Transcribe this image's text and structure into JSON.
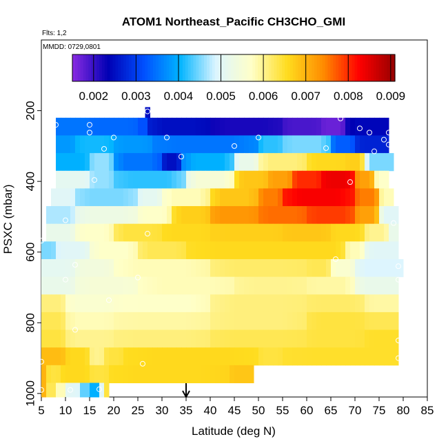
{
  "chart_data": {
    "type": "heatmap",
    "title": "ATOM1 Northeast_Pacific CH3CHO_GMI",
    "flights_label": "Flts: 1,2",
    "mmdd_label": "MMDD: 0729,0801",
    "xlabel": "Latitude (deg N)",
    "ylabel": "PSXC (mbar)",
    "xlim": [
      5,
      85
    ],
    "ylim": [
      1010,
      0
    ],
    "x_ticks": [
      5,
      10,
      15,
      20,
      25,
      30,
      35,
      40,
      45,
      50,
      55,
      60,
      65,
      70,
      75,
      80,
      85
    ],
    "y_ticks": [
      200,
      400,
      600,
      800,
      1000
    ],
    "colorbar": {
      "min": 0.0015,
      "max": 0.0091,
      "ticks": [
        0.002,
        0.003,
        0.004,
        0.005,
        0.006,
        0.007,
        0.008,
        0.009
      ],
      "colors": [
        "#8a2be2",
        "#0000b4",
        "#0050ff",
        "#00b4ff",
        "#dcf5ff",
        "#ffffc8",
        "#ffdc1e",
        "#ff8c00",
        "#ff0000",
        "#960000"
      ]
    },
    "marker_latitude": 35,
    "rows": [
      {
        "p_top": 190,
        "p_bot": 220,
        "segments": [
          [
            26.5,
            27.5,
            0.0025
          ]
        ]
      },
      {
        "p_top": 220,
        "p_bot": 270,
        "segments": [
          [
            8,
            15,
            0.0035
          ],
          [
            15,
            25,
            0.0034
          ],
          [
            25,
            27,
            0.0032
          ],
          [
            27,
            40,
            0.0025
          ],
          [
            40,
            55,
            0.0022
          ],
          [
            55,
            63,
            0.0019
          ],
          [
            63,
            68,
            0.0017
          ],
          [
            68,
            77,
            0.0024
          ]
        ]
      },
      {
        "p_top": 270,
        "p_bot": 320,
        "segments": [
          [
            8,
            12,
            0.0038
          ],
          [
            12,
            20,
            0.0041
          ],
          [
            20,
            28,
            0.0038
          ],
          [
            28,
            50,
            0.0035
          ],
          [
            50,
            55,
            0.0042
          ],
          [
            55,
            65,
            0.0045
          ],
          [
            65,
            70,
            0.0033
          ],
          [
            70,
            77,
            0.0027
          ]
        ]
      },
      {
        "p_top": 320,
        "p_bot": 370,
        "segments": [
          [
            8,
            15,
            0.004
          ],
          [
            15,
            20,
            0.0046
          ],
          [
            20,
            30,
            0.0035
          ],
          [
            30,
            34,
            0.0025
          ],
          [
            34,
            45,
            0.004
          ],
          [
            45,
            50,
            0.0052
          ],
          [
            50,
            60,
            0.0061
          ],
          [
            60,
            68,
            0.0066
          ],
          [
            68,
            72,
            0.0067
          ],
          [
            72,
            78,
            0.0045
          ]
        ]
      },
      {
        "p_top": 370,
        "p_bot": 420,
        "segments": [
          [
            8,
            15,
            0.0051
          ],
          [
            15,
            20,
            0.0046
          ],
          [
            20,
            35,
            0.0042
          ],
          [
            35,
            45,
            0.0055
          ],
          [
            45,
            52,
            0.0068
          ],
          [
            52,
            57,
            0.0072
          ],
          [
            57,
            63,
            0.008
          ],
          [
            63,
            70,
            0.0084
          ],
          [
            70,
            74,
            0.0072
          ],
          [
            74,
            77,
            0.0057
          ]
        ]
      },
      {
        "p_top": 420,
        "p_bot": 470,
        "segments": [
          [
            7,
            12,
            0.005
          ],
          [
            12,
            25,
            0.0045
          ],
          [
            25,
            30,
            0.0051
          ],
          [
            30,
            40,
            0.0058
          ],
          [
            40,
            50,
            0.0068
          ],
          [
            50,
            55,
            0.0075
          ],
          [
            55,
            70,
            0.0083
          ],
          [
            70,
            75,
            0.0075
          ],
          [
            75,
            78,
            0.0058
          ]
        ]
      },
      {
        "p_top": 470,
        "p_bot": 520,
        "segments": [
          [
            6,
            12,
            0.0047
          ],
          [
            12,
            25,
            0.0053
          ],
          [
            25,
            32,
            0.0057
          ],
          [
            32,
            40,
            0.0067
          ],
          [
            40,
            50,
            0.0073
          ],
          [
            50,
            60,
            0.0076
          ],
          [
            60,
            70,
            0.0079
          ],
          [
            70,
            75,
            0.0072
          ],
          [
            75,
            79,
            0.005
          ]
        ]
      },
      {
        "p_top": 520,
        "p_bot": 570,
        "segments": [
          [
            6,
            12,
            0.0052
          ],
          [
            12,
            20,
            0.0057
          ],
          [
            20,
            30,
            0.0064
          ],
          [
            30,
            40,
            0.0066
          ],
          [
            40,
            55,
            0.0067
          ],
          [
            55,
            65,
            0.0068
          ],
          [
            65,
            72,
            0.0066
          ],
          [
            72,
            77,
            0.006
          ],
          [
            77,
            79,
            0.0052
          ]
        ]
      },
      {
        "p_top": 570,
        "p_bot": 620,
        "segments": [
          [
            5,
            8,
            0.0045
          ],
          [
            8,
            15,
            0.005
          ],
          [
            15,
            25,
            0.0057
          ],
          [
            25,
            35,
            0.0063
          ],
          [
            35,
            60,
            0.0066
          ],
          [
            60,
            68,
            0.0066
          ],
          [
            68,
            72,
            0.0058
          ],
          [
            72,
            79,
            0.005
          ]
        ]
      },
      {
        "p_top": 620,
        "p_bot": 670,
        "segments": [
          [
            5,
            12,
            0.0051
          ],
          [
            12,
            20,
            0.0054
          ],
          [
            20,
            40,
            0.0058
          ],
          [
            40,
            60,
            0.0062
          ],
          [
            60,
            65,
            0.0063
          ],
          [
            65,
            70,
            0.0056
          ],
          [
            70,
            80,
            0.0049
          ]
        ]
      },
      {
        "p_top": 670,
        "p_bot": 720,
        "segments": [
          [
            5,
            12,
            0.0052
          ],
          [
            12,
            25,
            0.0055
          ],
          [
            25,
            45,
            0.0058
          ],
          [
            45,
            60,
            0.006
          ],
          [
            60,
            70,
            0.0059
          ],
          [
            70,
            79,
            0.0052
          ]
        ]
      },
      {
        "p_top": 720,
        "p_bot": 770,
        "segments": [
          [
            5,
            10,
            0.0061
          ],
          [
            10,
            20,
            0.0056
          ],
          [
            20,
            40,
            0.0057
          ],
          [
            40,
            60,
            0.0061
          ],
          [
            60,
            72,
            0.0062
          ],
          [
            72,
            79,
            0.0059
          ]
        ]
      },
      {
        "p_top": 770,
        "p_bot": 820,
        "segments": [
          [
            5,
            10,
            0.0063
          ],
          [
            10,
            20,
            0.0058
          ],
          [
            20,
            40,
            0.0059
          ],
          [
            40,
            60,
            0.0061
          ],
          [
            60,
            72,
            0.0064
          ],
          [
            72,
            79,
            0.0063
          ]
        ]
      },
      {
        "p_top": 820,
        "p_bot": 870,
        "segments": [
          [
            5,
            10,
            0.0064
          ],
          [
            10,
            20,
            0.006
          ],
          [
            20,
            40,
            0.0061
          ],
          [
            40,
            60,
            0.0063
          ],
          [
            60,
            72,
            0.0064
          ],
          [
            72,
            79,
            0.0065
          ]
        ]
      },
      {
        "p_top": 870,
        "p_bot": 920,
        "segments": [
          [
            5,
            10,
            0.0069
          ],
          [
            10,
            15,
            0.0066
          ],
          [
            15,
            18,
            0.006
          ],
          [
            18,
            22,
            0.0064
          ],
          [
            22,
            50,
            0.0066
          ],
          [
            50,
            55,
            0.0064
          ],
          [
            55,
            79,
            0.0065
          ]
        ]
      },
      {
        "p_top": 920,
        "p_bot": 970,
        "segments": [
          [
            5,
            6,
            0.007
          ],
          [
            6,
            9,
            0.0064
          ],
          [
            9,
            15,
            0.0066
          ],
          [
            15,
            19,
            0.0064
          ],
          [
            19,
            44,
            0.0066
          ],
          [
            44,
            49,
            0.0068
          ]
        ]
      },
      {
        "p_top": 970,
        "p_bot": 1010,
        "segments": [
          [
            5,
            6,
            0.007
          ],
          [
            6,
            8,
            0.0063
          ],
          [
            8,
            10,
            0.0058
          ],
          [
            10,
            13,
            0.005
          ],
          [
            13,
            15,
            0.0044
          ],
          [
            15,
            17,
            0.004
          ],
          [
            17,
            18,
            0.005
          ],
          [
            18,
            19,
            0.0064
          ]
        ]
      }
    ],
    "points": [
      [
        8,
        240
      ],
      [
        15,
        240
      ],
      [
        15,
        262
      ],
      [
        18,
        308
      ],
      [
        20,
        276
      ],
      [
        27,
        202
      ],
      [
        31,
        276
      ],
      [
        34,
        330
      ],
      [
        45,
        300
      ],
      [
        50,
        276
      ],
      [
        64,
        306
      ],
      [
        67,
        222
      ],
      [
        71,
        250
      ],
      [
        73,
        262
      ],
      [
        74,
        315
      ],
      [
        76,
        282
      ],
      [
        77,
        262
      ],
      [
        77,
        296
      ],
      [
        16,
        396
      ],
      [
        69,
        402
      ],
      [
        79,
        456
      ],
      [
        10,
        510
      ],
      [
        27,
        548
      ],
      [
        78,
        518
      ],
      [
        5,
        568
      ],
      [
        12,
        636
      ],
      [
        10,
        678
      ],
      [
        25,
        672
      ],
      [
        66,
        620
      ],
      [
        79,
        640
      ],
      [
        79,
        678
      ],
      [
        19,
        736
      ],
      [
        12,
        820
      ],
      [
        79,
        850
      ],
      [
        5,
        910
      ],
      [
        26,
        916
      ],
      [
        79,
        900
      ],
      [
        5,
        990
      ],
      [
        11,
        990
      ],
      [
        17,
        988
      ]
    ]
  }
}
